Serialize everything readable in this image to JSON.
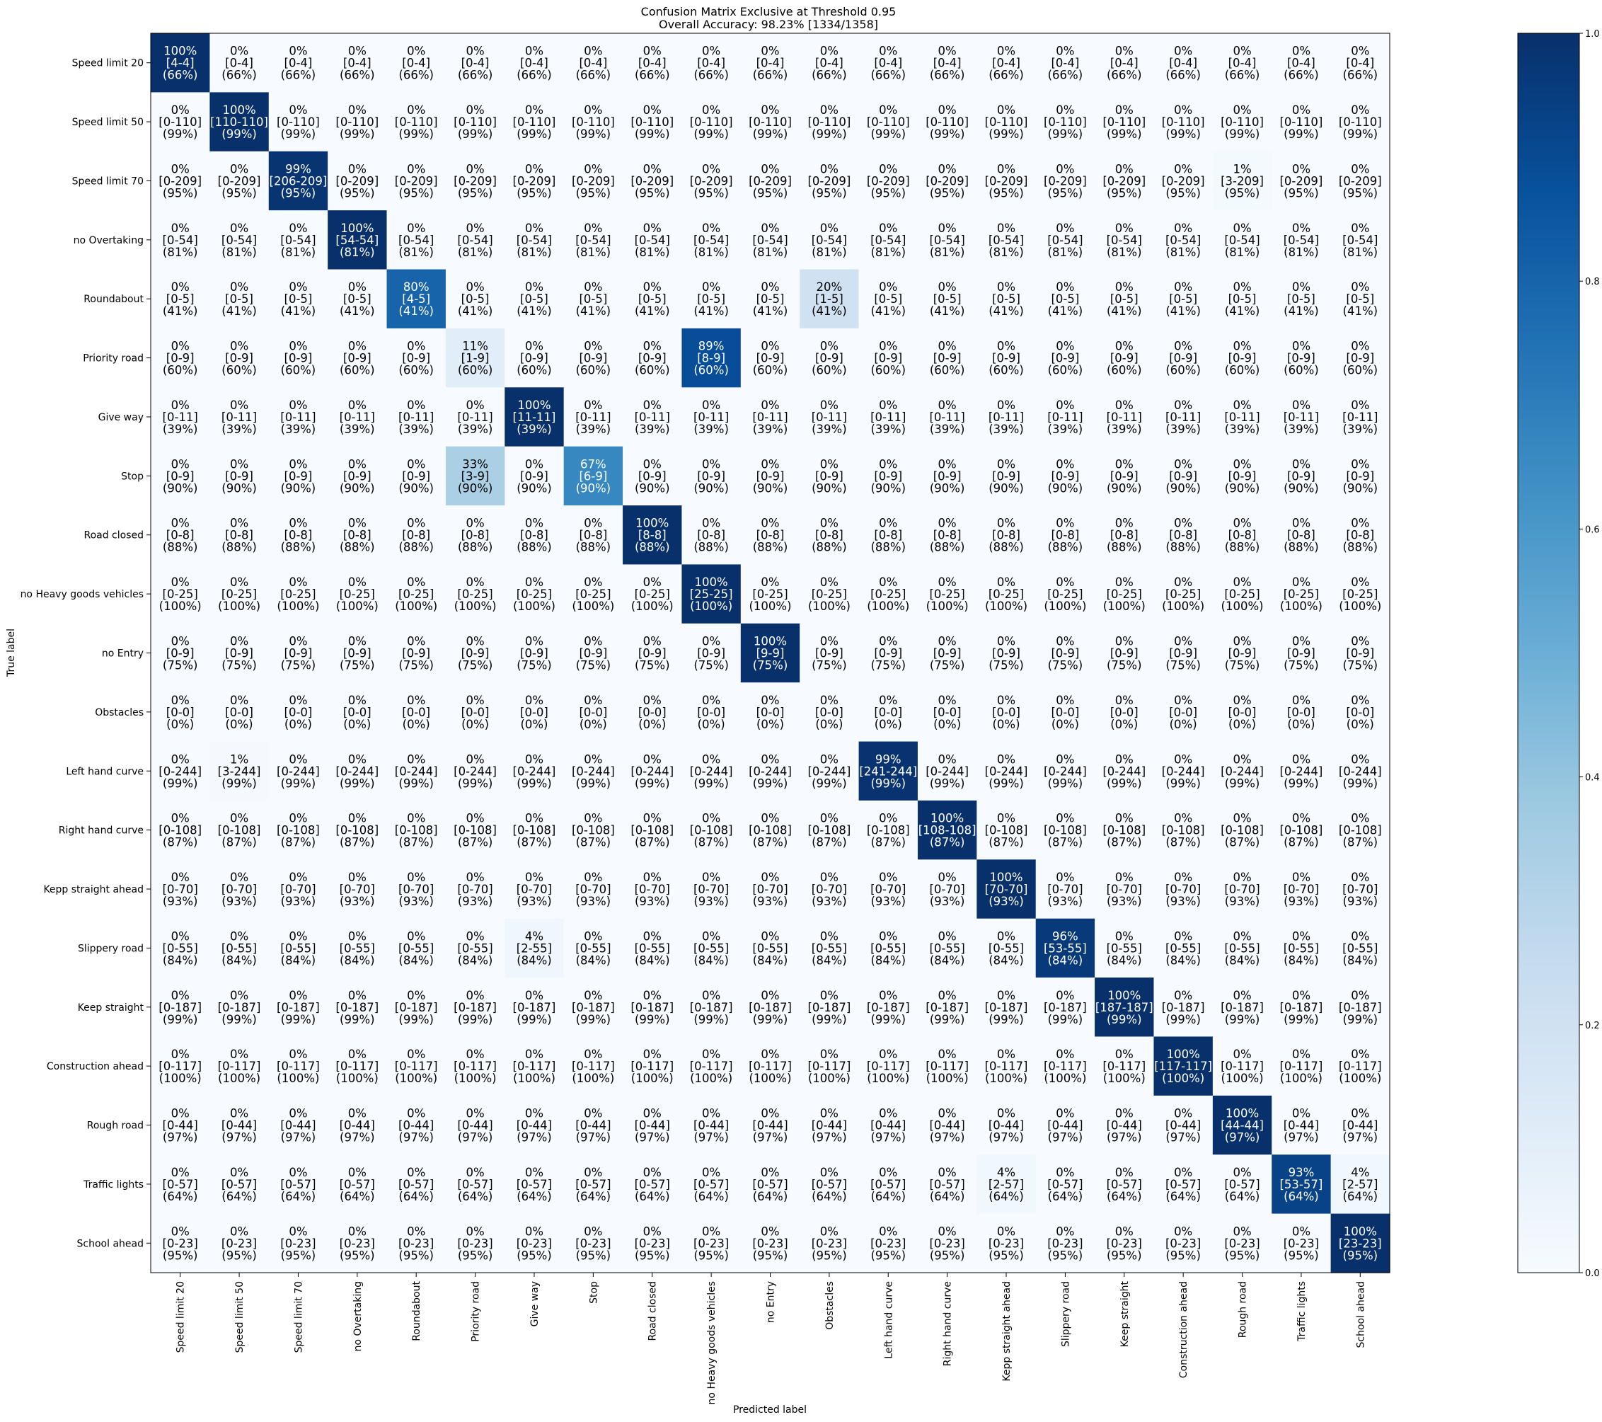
{
  "chart_data": {
    "type": "heatmap",
    "title": "Confusion Matrix Exclusive at Threshold 0.95",
    "subtitle": "Overall Accuracy:  98.23%  [1334/1358]",
    "xlabel": "Predicted label",
    "ylabel": "True label",
    "labels": [
      "Speed limit 20",
      "Speed limit 50",
      "Speed limit 70",
      "no Overtaking",
      "Roundabout",
      "Priority road",
      "Give way",
      "Stop",
      "Road closed",
      "no Heavy goods vehicles",
      "no Entry",
      "Obstacles",
      "Left hand curve",
      "Right hand curve",
      "Kepp straight ahead",
      "Slippery road",
      "Keep straight",
      "Construction ahead",
      "Rough road",
      "Traffic lights",
      "School ahead"
    ],
    "row_totals": [
      4,
      110,
      209,
      54,
      5,
      9,
      11,
      9,
      8,
      25,
      9,
      0,
      244,
      108,
      70,
      55,
      187,
      117,
      44,
      57,
      23
    ],
    "row_coverage": [
      "66%",
      "99%",
      "95%",
      "81%",
      "41%",
      "60%",
      "39%",
      "90%",
      "88%",
      "100%",
      "75%",
      "0%",
      "99%",
      "87%",
      "93%",
      "84%",
      "99%",
      "100%",
      "97%",
      "64%",
      "95%"
    ],
    "nonzero_cells": [
      {
        "row": 0,
        "col": 0,
        "count": 4,
        "pct": "100%"
      },
      {
        "row": 1,
        "col": 1,
        "count": 110,
        "pct": "100%"
      },
      {
        "row": 2,
        "col": 2,
        "count": 206,
        "pct": "99%"
      },
      {
        "row": 2,
        "col": 18,
        "count": 3,
        "pct": "1%"
      },
      {
        "row": 3,
        "col": 3,
        "count": 54,
        "pct": "100%"
      },
      {
        "row": 4,
        "col": 4,
        "count": 4,
        "pct": "80%"
      },
      {
        "row": 4,
        "col": 11,
        "count": 1,
        "pct": "20%"
      },
      {
        "row": 5,
        "col": 5,
        "count": 1,
        "pct": "11%"
      },
      {
        "row": 5,
        "col": 9,
        "count": 8,
        "pct": "89%"
      },
      {
        "row": 6,
        "col": 6,
        "count": 11,
        "pct": "100%"
      },
      {
        "row": 7,
        "col": 5,
        "count": 3,
        "pct": "33%"
      },
      {
        "row": 7,
        "col": 7,
        "count": 6,
        "pct": "67%"
      },
      {
        "row": 8,
        "col": 8,
        "count": 8,
        "pct": "100%"
      },
      {
        "row": 9,
        "col": 9,
        "count": 25,
        "pct": "100%"
      },
      {
        "row": 10,
        "col": 10,
        "count": 9,
        "pct": "100%"
      },
      {
        "row": 12,
        "col": 1,
        "count": 3,
        "pct": "1%"
      },
      {
        "row": 12,
        "col": 12,
        "count": 241,
        "pct": "99%"
      },
      {
        "row": 13,
        "col": 13,
        "count": 108,
        "pct": "100%"
      },
      {
        "row": 14,
        "col": 14,
        "count": 70,
        "pct": "100%"
      },
      {
        "row": 15,
        "col": 6,
        "count": 2,
        "pct": "4%"
      },
      {
        "row": 15,
        "col": 15,
        "count": 53,
        "pct": "96%"
      },
      {
        "row": 16,
        "col": 16,
        "count": 187,
        "pct": "100%"
      },
      {
        "row": 17,
        "col": 17,
        "count": 117,
        "pct": "100%"
      },
      {
        "row": 18,
        "col": 18,
        "count": 44,
        "pct": "100%"
      },
      {
        "row": 19,
        "col": 14,
        "count": 2,
        "pct": "4%"
      },
      {
        "row": 19,
        "col": 19,
        "count": 53,
        "pct": "93%"
      },
      {
        "row": 19,
        "col": 20,
        "count": 2,
        "pct": "4%"
      },
      {
        "row": 20,
        "col": 20,
        "count": 23,
        "pct": "100%"
      }
    ],
    "zero_pct": "0%",
    "colorbar": {
      "min": 0,
      "max": 1,
      "ticks": [
        "0.0",
        "0.2",
        "0.4",
        "0.6",
        "0.8",
        "1.0"
      ]
    },
    "colormap": "Blues",
    "grid": false
  }
}
